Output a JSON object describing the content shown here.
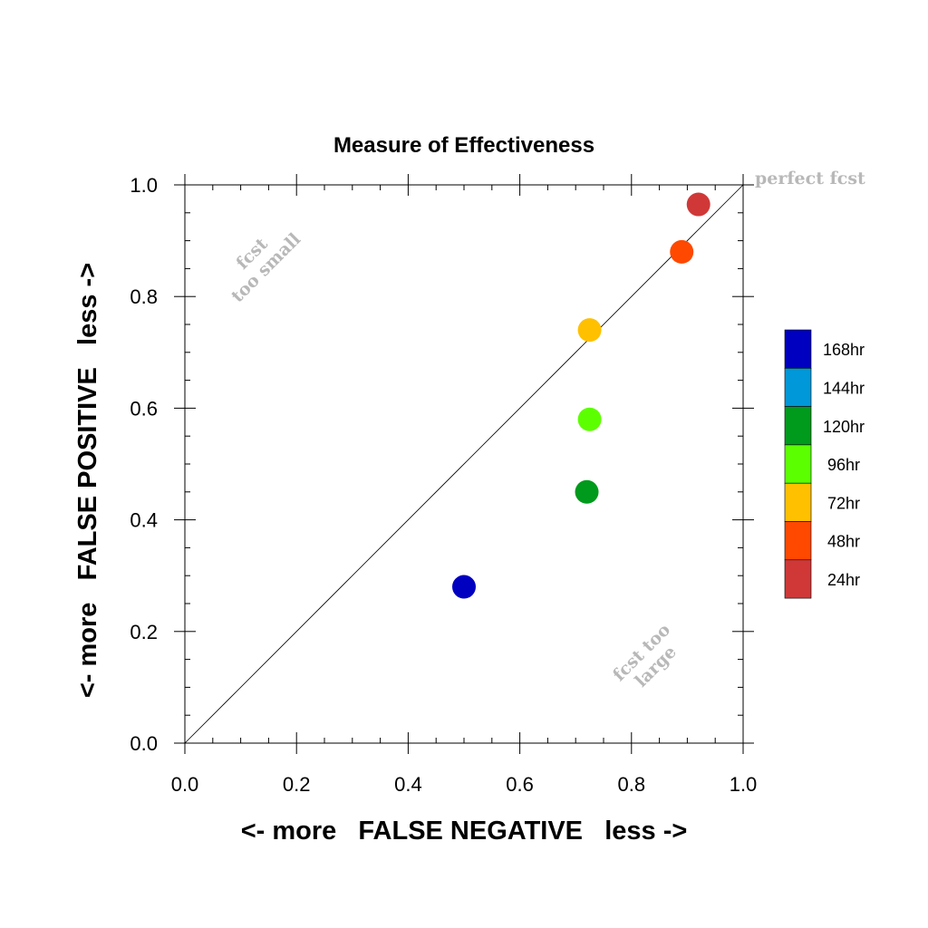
{
  "chart_data": {
    "type": "scatter",
    "title": "Measure of Effectiveness",
    "xlabel": "<- more   FALSE NEGATIVE   less ->",
    "ylabel": "<- more   FALSE POSITIVE   less ->",
    "xlim": [
      0,
      1
    ],
    "ylim": [
      0,
      1
    ],
    "x_ticks": [
      "0.0",
      "0.2",
      "0.4",
      "0.6",
      "0.8",
      "1.0"
    ],
    "y_ticks": [
      "0.0",
      "0.2",
      "0.4",
      "0.6",
      "0.8",
      "1.0"
    ],
    "grid": false,
    "legend_position": "right",
    "annotations": {
      "perfect": "perfect fcst",
      "too_small_1": "fcst",
      "too_small_2": "too small",
      "too_large_1": "fcst too",
      "too_large_2": "large"
    },
    "series": [
      {
        "name": "168hr",
        "color": "#0000c0",
        "x": 0.5,
        "y": 0.28
      },
      {
        "name": "144hr",
        "color": "#0098d8",
        "x": null,
        "y": null
      },
      {
        "name": "120hr",
        "color": "#009a1c",
        "x": 0.72,
        "y": 0.45
      },
      {
        "name": "96hr",
        "color": "#5cff00",
        "x": 0.725,
        "y": 0.58
      },
      {
        "name": "72hr",
        "color": "#ffc000",
        "x": 0.725,
        "y": 0.74
      },
      {
        "name": "48hr",
        "color": "#ff4800",
        "x": 0.89,
        "y": 0.88
      },
      {
        "name": "24hr",
        "color": "#d03838",
        "x": 0.92,
        "y": 0.965
      }
    ]
  }
}
